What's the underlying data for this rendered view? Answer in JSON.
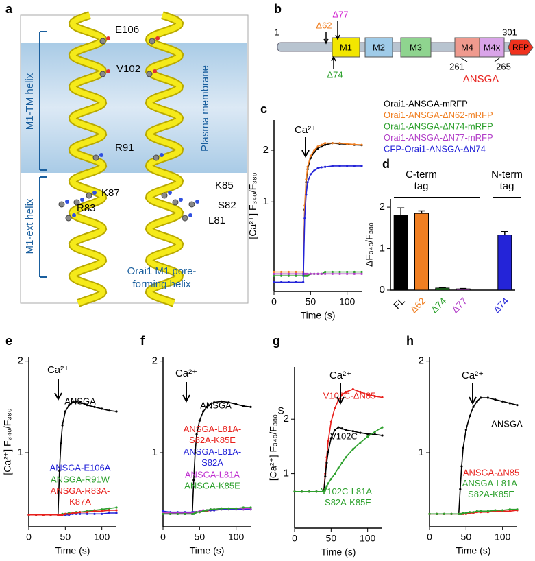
{
  "panel_a": {
    "label": "a",
    "residues": [
      "E106",
      "V102",
      "R91",
      "K87",
      "K85",
      "R83",
      "S82",
      "L81"
    ],
    "helix_labels": [
      "M1-TM helix",
      "M1-ext helix"
    ],
    "membrane_label": "Plasma membrane",
    "caption": [
      "Orai1 M1 pore-",
      "forming helix"
    ]
  },
  "panel_b": {
    "label": "b",
    "start": 1,
    "end": 301,
    "deletions": [
      "Δ62",
      "Δ77",
      "Δ74"
    ],
    "domains": [
      "M1",
      "M2",
      "M3",
      "M4",
      "M4x",
      "RFP"
    ],
    "mutation_range": [
      261,
      265
    ],
    "mutation": "ANSGA"
  },
  "chart_data": [
    {
      "type": "line",
      "panel": "c",
      "log_y": true,
      "stimulus": "Ca²⁺",
      "xlabel": "Time (s)",
      "ylabel": "[Ca²⁺] F₃₄₀/F₃₈₀",
      "xlim": [
        0,
        120
      ],
      "xticks": [
        0,
        50,
        100
      ],
      "ylim": [
        0.3,
        3
      ],
      "yticks": [
        1,
        2
      ],
      "x": [
        0,
        10,
        20,
        30,
        40,
        42,
        44,
        46,
        50,
        55,
        60,
        65,
        70,
        80,
        90,
        100,
        110,
        120
      ],
      "series": [
        {
          "name": "Orai1-ANSGA-mRFP",
          "color": "#000000",
          "values": [
            0.38,
            0.38,
            0.38,
            0.38,
            0.38,
            0.9,
            1.3,
            1.55,
            1.8,
            1.95,
            2.05,
            2.1,
            2.15,
            2.2,
            2.18,
            2.17,
            2.15,
            2.14
          ]
        },
        {
          "name": "Orai1-ANSGA-ΔN62-mRFP",
          "color": "#f07f22",
          "values": [
            0.39,
            0.39,
            0.39,
            0.39,
            0.39,
            0.95,
            1.35,
            1.6,
            1.85,
            2.0,
            2.1,
            2.15,
            2.2,
            2.2,
            2.2,
            2.18,
            2.16,
            2.15
          ]
        },
        {
          "name": "Orai1-ANSGA-ΔN74-mRFP",
          "color": "#2ca02c",
          "values": [
            0.37,
            0.37,
            0.37,
            0.37,
            0.37,
            0.37,
            0.37,
            0.37,
            0.38,
            0.38,
            0.38,
            0.38,
            0.39,
            0.39,
            0.39,
            0.39,
            0.39,
            0.39
          ]
        },
        {
          "name": "Orai1-ANSGA-ΔN77-mRFP",
          "color": "#b23ec8",
          "values": [
            0.38,
            0.38,
            0.38,
            0.38,
            0.38,
            0.38,
            0.38,
            0.38,
            0.38,
            0.38,
            0.38,
            0.38,
            0.38,
            0.38,
            0.38,
            0.38,
            0.38,
            0.38
          ]
        },
        {
          "name": "CFP-Orai1-ANSGA-ΔN74",
          "color": "#2424d8",
          "values": [
            0.34,
            0.34,
            0.34,
            0.34,
            0.34,
            0.8,
            1.1,
            1.3,
            1.45,
            1.52,
            1.57,
            1.59,
            1.6,
            1.62,
            1.62,
            1.62,
            1.62,
            1.62
          ]
        }
      ]
    },
    {
      "type": "bar",
      "panel": "d",
      "ylabel": "ΔF₃₄₀/F₃₈₀",
      "group_labels": [
        [
          "C-term",
          "tag"
        ],
        [
          "N-term",
          "tag"
        ]
      ],
      "categories": [
        "FL",
        "Δ62",
        "Δ74",
        "Δ77",
        null,
        "Δ74"
      ],
      "values": [
        1.8,
        1.85,
        0.05,
        0.03,
        null,
        1.33
      ],
      "errors": [
        0.18,
        0.06,
        0.02,
        0.01,
        null,
        0.08
      ],
      "colors": [
        "#000000",
        "#f07f22",
        "#2ca02c",
        "#b23ec8",
        null,
        "#2424d8"
      ],
      "ylim": [
        0,
        2.2
      ],
      "yticks": [
        0,
        1,
        2
      ]
    },
    {
      "type": "line",
      "panel": "e",
      "stimulus": "Ca²⁺",
      "xlabel": "Time (s)",
      "ylabel": "[Ca²⁺] F₃₄₀/F₃₈₀",
      "xlim": [
        0,
        120
      ],
      "xticks": [
        0,
        50,
        100
      ],
      "ylim": [
        0.19,
        2.05
      ],
      "yticks": [
        1,
        2
      ],
      "x": [
        0,
        10,
        20,
        30,
        40,
        42,
        44,
        46,
        50,
        55,
        60,
        65,
        70,
        80,
        90,
        100,
        110,
        120
      ],
      "series": [
        {
          "name": "ANSGA",
          "color": "#000000",
          "values": [
            0.32,
            0.32,
            0.32,
            0.32,
            0.32,
            0.8,
            1.1,
            1.3,
            1.45,
            1.52,
            1.55,
            1.56,
            1.55,
            1.52,
            1.5,
            1.48,
            1.46,
            1.45
          ]
        },
        {
          "name": "ANSGA-E106A",
          "color": "#2424d8",
          "values": [
            0.32,
            0.32,
            0.32,
            0.32,
            0.32,
            0.32,
            0.32,
            0.32,
            0.32,
            0.32,
            0.33,
            0.33,
            0.33,
            0.33,
            0.33,
            0.33,
            0.34,
            0.34
          ]
        },
        {
          "name": "ANSGA-R91W",
          "color": "#2ca02c",
          "values": [
            0.32,
            0.32,
            0.32,
            0.32,
            0.32,
            0.32,
            0.32,
            0.33,
            0.33,
            0.34,
            0.34,
            0.35,
            0.35,
            0.36,
            0.37,
            0.38,
            0.39,
            0.4
          ]
        },
        {
          "name": [
            "ANSGA-R83A-",
            "K87A"
          ],
          "color": "#e8201c",
          "values": [
            0.32,
            0.32,
            0.32,
            0.32,
            0.32,
            0.32,
            0.32,
            0.32,
            0.33,
            0.33,
            0.34,
            0.34,
            0.35,
            0.35,
            0.36,
            0.36,
            0.37,
            0.37
          ]
        }
      ]
    },
    {
      "type": "line",
      "panel": "f",
      "stimulus": "Ca²⁺",
      "xlabel": "Time (s)",
      "xlim": [
        0,
        120
      ],
      "xticks": [
        0,
        50,
        100
      ],
      "ylim": [
        0.19,
        2.05
      ],
      "yticks": [
        1,
        2
      ],
      "x": [
        0,
        10,
        20,
        30,
        40,
        42,
        44,
        46,
        50,
        55,
        60,
        65,
        70,
        80,
        90,
        100,
        110,
        120
      ],
      "series": [
        {
          "name": "ANSGA",
          "color": "#000000",
          "values": [
            0.33,
            0.33,
            0.33,
            0.33,
            0.33,
            0.7,
            1.0,
            1.2,
            1.35,
            1.45,
            1.5,
            1.53,
            1.55,
            1.56,
            1.55,
            1.53,
            1.51,
            1.5
          ]
        },
        {
          "name": [
            "ANSGA-L81A-",
            "S82A-K85E"
          ],
          "color": "#e8201c",
          "values": [
            0.34,
            0.34,
            0.34,
            0.34,
            0.34,
            0.34,
            0.35,
            0.35,
            0.35,
            0.36,
            0.36,
            0.37,
            0.37,
            0.38,
            0.38,
            0.38,
            0.38,
            0.38
          ]
        },
        {
          "name": [
            "ANSGA-L81A-",
            "S82A"
          ],
          "color": "#2424d8",
          "values": [
            0.36,
            0.35,
            0.35,
            0.35,
            0.35,
            0.35,
            0.35,
            0.35,
            0.36,
            0.36,
            0.37,
            0.37,
            0.37,
            0.38,
            0.38,
            0.38,
            0.38,
            0.38
          ]
        },
        {
          "name": "ANSGA-L81A",
          "color": "#c030d0",
          "values": [
            0.34,
            0.34,
            0.34,
            0.34,
            0.34,
            0.34,
            0.35,
            0.35,
            0.36,
            0.37,
            0.37,
            0.38,
            0.38,
            0.39,
            0.39,
            0.39,
            0.39,
            0.39
          ]
        },
        {
          "name": "ANSGA-K85E",
          "color": "#2ca02c",
          "values": [
            0.33,
            0.33,
            0.33,
            0.33,
            0.33,
            0.33,
            0.34,
            0.35,
            0.35,
            0.36,
            0.37,
            0.38,
            0.38,
            0.39,
            0.39,
            0.39,
            0.4,
            0.4
          ]
        }
      ]
    },
    {
      "type": "line",
      "panel": "g",
      "stimulus": "Ca²⁺",
      "xlabel": "Time (s)",
      "ylabel": "[Ca²⁺] F₃₄₀/F₃₈₀",
      "annotation": "S",
      "xlim": [
        0,
        120
      ],
      "xticks": [
        0,
        50,
        100
      ],
      "ylim": [
        0,
        2.96
      ],
      "yticks": [
        1,
        2
      ],
      "x": [
        0,
        10,
        20,
        30,
        40,
        42,
        44,
        46,
        50,
        55,
        60,
        65,
        70,
        80,
        90,
        100,
        110,
        120
      ],
      "series": [
        {
          "name": "V102C-ΔN85",
          "color": "#e8201c",
          "values": [
            0.67,
            0.67,
            0.67,
            0.67,
            0.67,
            1.0,
            1.3,
            1.6,
            1.95,
            2.2,
            2.35,
            2.45,
            2.5,
            2.55,
            2.5,
            2.45,
            2.42,
            2.4
          ]
        },
        {
          "name": "V102C",
          "color": "#000000",
          "values": [
            0.67,
            0.67,
            0.67,
            0.67,
            0.67,
            0.95,
            1.2,
            1.4,
            1.65,
            1.8,
            1.85,
            1.83,
            1.8,
            1.78,
            1.75,
            1.73,
            1.72,
            1.7
          ]
        },
        {
          "name": [
            "V102C-L81A-",
            "S82A-K85E"
          ],
          "color": "#2ca02c",
          "values": [
            0.67,
            0.67,
            0.67,
            0.67,
            0.67,
            0.72,
            0.77,
            0.82,
            0.9,
            1.0,
            1.1,
            1.2,
            1.3,
            1.45,
            1.57,
            1.68,
            1.77,
            1.85
          ]
        }
      ]
    },
    {
      "type": "line",
      "panel": "h",
      "stimulus": "Ca²⁺",
      "xlabel": "Time (s)",
      "xlim": [
        0,
        120
      ],
      "xticks": [
        0,
        50,
        100
      ],
      "ylim": [
        0.19,
        2.05
      ],
      "yticks": [
        1,
        2
      ],
      "x": [
        0,
        10,
        20,
        30,
        40,
        42,
        44,
        46,
        50,
        55,
        60,
        65,
        70,
        80,
        90,
        100,
        110,
        120
      ],
      "series": [
        {
          "name": "ANSGA",
          "color": "#000000",
          "values": [
            0.33,
            0.33,
            0.33,
            0.33,
            0.33,
            0.6,
            0.85,
            1.05,
            1.25,
            1.4,
            1.5,
            1.56,
            1.6,
            1.6,
            1.58,
            1.56,
            1.54,
            1.52
          ]
        },
        {
          "name": "ANSGA-ΔN85",
          "color": "#e8201c",
          "values": [
            0.33,
            0.33,
            0.33,
            0.33,
            0.33,
            0.33,
            0.33,
            0.33,
            0.33,
            0.34,
            0.34,
            0.35,
            0.35,
            0.35,
            0.36,
            0.36,
            0.36,
            0.37
          ]
        },
        {
          "name": [
            "ANSGA-L81A-",
            "S82A-K85E"
          ],
          "color": "#2ca02c",
          "values": [
            0.33,
            0.33,
            0.33,
            0.33,
            0.33,
            0.33,
            0.33,
            0.34,
            0.34,
            0.35,
            0.35,
            0.36,
            0.36,
            0.36,
            0.37,
            0.37,
            0.38,
            0.38
          ]
        }
      ]
    }
  ]
}
